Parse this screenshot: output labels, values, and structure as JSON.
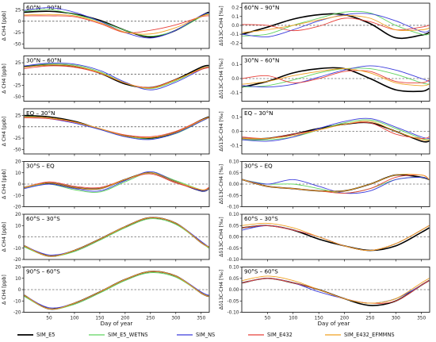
{
  "figure": {
    "xlabel": "Day of year",
    "x_ticks": [
      50,
      100,
      150,
      200,
      250,
      300,
      350
    ],
    "xlim": [
      0,
      366
    ],
    "series": [
      {
        "name": "SIM_E5",
        "color": "#000000"
      },
      {
        "name": "SIM_E5_WETNS",
        "color": "#5fd35f"
      },
      {
        "name": "SIM_NS",
        "color": "#3c3cdc"
      },
      {
        "name": "SIM_E432",
        "color": "#e8413a"
      },
      {
        "name": "SIM_E432_EFMMNS",
        "color": "#f0a020"
      }
    ]
  },
  "chart_data": [
    {
      "type": "line",
      "title": "60°N – 90°N",
      "ylabel": "Δ CH4 [ppb]",
      "ylim": [
        -60,
        40
      ],
      "yticks": [
        -50,
        -25,
        0,
        25
      ],
      "x": [
        1,
        50,
        100,
        150,
        200,
        250,
        300,
        350,
        365
      ],
      "series": [
        {
          "name": "SIM_E5",
          "values": [
            20,
            22,
            16,
            2,
            -20,
            -35,
            -20,
            12,
            20
          ]
        },
        {
          "name": "SIM_E5_WETNS",
          "values": [
            22,
            26,
            15,
            0,
            -20,
            -33,
            -20,
            10,
            18
          ]
        },
        {
          "name": "SIM_NS",
          "values": [
            24,
            30,
            20,
            0,
            -25,
            -37,
            -20,
            13,
            18
          ]
        },
        {
          "name": "SIM_E432",
          "values": [
            12,
            12,
            10,
            -5,
            -25,
            -20,
            -8,
            10,
            12
          ]
        },
        {
          "name": "SIM_E432_EFMMNS",
          "values": [
            14,
            15,
            12,
            -3,
            -24,
            -28,
            -14,
            11,
            15
          ]
        }
      ]
    },
    {
      "type": "line",
      "title": "60°N – 90°N",
      "ylabel": "Δδ13C-CH4 [‰]",
      "ylim": [
        -0.26,
        0.25
      ],
      "yticks": [
        -0.2,
        -0.1,
        0.0,
        0.1,
        0.2
      ],
      "x": [
        1,
        50,
        100,
        150,
        200,
        250,
        300,
        350,
        365
      ],
      "series": [
        {
          "name": "SIM_E5",
          "values": [
            -0.1,
            -0.02,
            0.07,
            0.12,
            0.12,
            0.02,
            -0.14,
            -0.11,
            -0.08
          ]
        },
        {
          "name": "SIM_E5_WETNS",
          "values": [
            -0.12,
            -0.1,
            0.0,
            0.08,
            0.15,
            0.14,
            0.0,
            -0.1,
            -0.1
          ]
        },
        {
          "name": "SIM_NS",
          "values": [
            -0.1,
            -0.13,
            -0.05,
            0.05,
            0.12,
            0.13,
            0.05,
            -0.07,
            -0.06
          ]
        },
        {
          "name": "SIM_E432",
          "values": [
            0.01,
            0.0,
            -0.06,
            -0.01,
            0.08,
            0.04,
            -0.05,
            -0.02,
            0.0
          ]
        },
        {
          "name": "SIM_E432_EFMMNS",
          "values": [
            -0.08,
            -0.05,
            0.0,
            0.06,
            0.11,
            0.08,
            -0.05,
            -0.05,
            -0.03
          ]
        }
      ]
    },
    {
      "type": "line",
      "title": "30°N – 60°N",
      "ylabel": "Δ CH4 [ppb]",
      "ylim": [
        -60,
        40
      ],
      "yticks": [
        -50,
        -25,
        0,
        25
      ],
      "x": [
        1,
        50,
        100,
        150,
        200,
        250,
        300,
        350,
        365
      ],
      "series": [
        {
          "name": "SIM_E5",
          "values": [
            17,
            20,
            17,
            2,
            -22,
            -30,
            -12,
            15,
            19
          ]
        },
        {
          "name": "SIM_E5_WETNS",
          "values": [
            18,
            22,
            20,
            5,
            -20,
            -32,
            -15,
            12,
            16
          ]
        },
        {
          "name": "SIM_NS",
          "values": [
            18,
            24,
            22,
            8,
            -18,
            -35,
            -18,
            10,
            16
          ]
        },
        {
          "name": "SIM_E432",
          "values": [
            12,
            18,
            15,
            2,
            -20,
            -30,
            -12,
            10,
            14
          ]
        },
        {
          "name": "SIM_E432_EFMMNS",
          "values": [
            15,
            20,
            17,
            3,
            -20,
            -31,
            -13,
            12,
            16
          ]
        }
      ]
    },
    {
      "type": "line",
      "title": "30°N – 60°N",
      "ylabel": "Δδ13C-CH4 [‰]",
      "ylim": [
        -0.16,
        0.16
      ],
      "yticks": [
        -0.1,
        0.0,
        0.1
      ],
      "x": [
        1,
        50,
        100,
        150,
        200,
        250,
        300,
        350,
        365
      ],
      "series": [
        {
          "name": "SIM_E5",
          "values": [
            -0.06,
            -0.02,
            0.04,
            0.07,
            0.07,
            0.0,
            -0.08,
            -0.09,
            -0.07
          ]
        },
        {
          "name": "SIM_E5_WETNS",
          "values": [
            -0.06,
            -0.05,
            -0.01,
            0.04,
            0.07,
            0.07,
            0.03,
            -0.03,
            -0.04
          ]
        },
        {
          "name": "SIM_NS",
          "values": [
            -0.05,
            -0.06,
            -0.04,
            0.01,
            0.06,
            0.09,
            0.06,
            0.0,
            -0.02
          ]
        },
        {
          "name": "SIM_E432",
          "values": [
            0.0,
            0.02,
            -0.03,
            0.0,
            0.05,
            0.05,
            -0.02,
            -0.03,
            -0.01
          ]
        },
        {
          "name": "SIM_E432_EFMMNS",
          "values": [
            -0.04,
            -0.02,
            0.02,
            0.05,
            0.07,
            0.04,
            -0.03,
            -0.05,
            -0.04
          ]
        }
      ]
    },
    {
      "type": "line",
      "title": "EQ – 30°N",
      "ylabel": "Δ CH4 [ppb]",
      "ylim": [
        -60,
        40
      ],
      "yticks": [
        -50,
        -25,
        0,
        25
      ],
      "x": [
        1,
        50,
        100,
        150,
        200,
        250,
        300,
        350,
        365
      ],
      "series": [
        {
          "name": "SIM_E5",
          "values": [
            25,
            22,
            12,
            -5,
            -20,
            -25,
            -12,
            15,
            22
          ]
        },
        {
          "name": "SIM_E5_WETNS",
          "values": [
            23,
            20,
            10,
            -5,
            -20,
            -27,
            -15,
            12,
            20
          ]
        },
        {
          "name": "SIM_NS",
          "values": [
            22,
            18,
            8,
            -6,
            -22,
            -28,
            -14,
            12,
            20
          ]
        },
        {
          "name": "SIM_E432",
          "values": [
            20,
            18,
            10,
            -4,
            -18,
            -22,
            -10,
            15,
            20
          ]
        },
        {
          "name": "SIM_E432_EFMMNS",
          "values": [
            22,
            20,
            11,
            -4,
            -20,
            -24,
            -12,
            14,
            21
          ]
        }
      ]
    },
    {
      "type": "line",
      "title": "EQ – 30°N",
      "ylabel": "Δδ13C-CH4 [‰]",
      "ylim": [
        -0.16,
        0.16
      ],
      "yticks": [
        -0.1,
        0.0,
        0.1
      ],
      "x": [
        1,
        50,
        100,
        150,
        200,
        250,
        300,
        350,
        365
      ],
      "series": [
        {
          "name": "SIM_E5",
          "values": [
            -0.05,
            -0.05,
            -0.02,
            0.02,
            0.05,
            0.06,
            0.0,
            -0.07,
            -0.07
          ]
        },
        {
          "name": "SIM_E5_WETNS",
          "values": [
            -0.06,
            -0.06,
            -0.04,
            0.01,
            0.06,
            0.08,
            0.02,
            -0.05,
            -0.06
          ]
        },
        {
          "name": "SIM_NS",
          "values": [
            -0.06,
            -0.07,
            -0.04,
            0.02,
            0.07,
            0.09,
            0.03,
            -0.04,
            -0.05
          ]
        },
        {
          "name": "SIM_E432",
          "values": [
            -0.04,
            -0.05,
            -0.02,
            0.01,
            0.05,
            0.06,
            -0.02,
            -0.05,
            -0.04
          ]
        },
        {
          "name": "SIM_E432_EFMMNS",
          "values": [
            -0.05,
            -0.05,
            -0.03,
            0.01,
            0.05,
            0.07,
            0.0,
            -0.06,
            -0.06
          ]
        }
      ]
    },
    {
      "type": "line",
      "title": "30°S – EQ",
      "ylabel": "Δ CH4 [ppb]",
      "ylim": [
        -20,
        20
      ],
      "yticks": [
        -20,
        -10,
        0,
        10,
        20
      ],
      "x": [
        1,
        50,
        100,
        150,
        200,
        250,
        300,
        350,
        365
      ],
      "series": [
        {
          "name": "SIM_E5",
          "values": [
            -3,
            1,
            -3,
            -4,
            4,
            10,
            2,
            -6,
            -4
          ]
        },
        {
          "name": "SIM_E5_WETNS",
          "values": [
            -3,
            0,
            -5,
            -7,
            2,
            10,
            3,
            -5,
            -4
          ]
        },
        {
          "name": "SIM_NS",
          "values": [
            -4,
            0,
            -4,
            -6,
            3,
            11,
            2,
            -6,
            -4
          ]
        },
        {
          "name": "SIM_E432",
          "values": [
            -3,
            2,
            -2,
            -3,
            4,
            9,
            1,
            -5,
            -3
          ]
        },
        {
          "name": "SIM_E432_EFMMNS",
          "values": [
            -3,
            1,
            -3,
            -4,
            4,
            10,
            2,
            -5,
            -4
          ]
        }
      ]
    },
    {
      "type": "line",
      "title": "30°S – EQ",
      "ylabel": "Δδ13C-CH4 [‰]",
      "ylim": [
        -0.1,
        0.1
      ],
      "yticks": [
        -0.1,
        -0.05,
        0.0,
        0.05,
        0.1
      ],
      "x": [
        1,
        50,
        100,
        150,
        200,
        250,
        300,
        350,
        365
      ],
      "series": [
        {
          "name": "SIM_E5",
          "values": [
            0.02,
            -0.01,
            -0.02,
            -0.03,
            -0.03,
            0.0,
            0.04,
            0.03,
            0.02
          ]
        },
        {
          "name": "SIM_E5_WETNS",
          "values": [
            0.02,
            0.0,
            0.0,
            -0.02,
            -0.04,
            -0.02,
            0.02,
            0.03,
            0.02
          ]
        },
        {
          "name": "SIM_NS",
          "values": [
            0.02,
            0.0,
            0.02,
            -0.01,
            -0.04,
            -0.03,
            0.02,
            0.03,
            0.02
          ]
        },
        {
          "name": "SIM_E432",
          "values": [
            0.02,
            -0.01,
            -0.02,
            -0.03,
            -0.04,
            -0.02,
            0.03,
            0.04,
            0.02
          ]
        },
        {
          "name": "SIM_E432_EFMMNS",
          "values": [
            0.02,
            -0.01,
            -0.02,
            -0.03,
            -0.03,
            0.0,
            0.04,
            0.04,
            0.02
          ]
        }
      ]
    },
    {
      "type": "line",
      "title": "60°S – 30°S",
      "ylabel": "Δ CH4 [ppb]",
      "ylim": [
        -20,
        20
      ],
      "yticks": [
        -20,
        -10,
        0,
        10,
        20
      ],
      "x": [
        1,
        50,
        100,
        150,
        200,
        250,
        300,
        350,
        365
      ],
      "series": [
        {
          "name": "SIM_E5",
          "values": [
            -8,
            -17,
            -12,
            -2,
            9,
            17,
            12,
            -5,
            -9
          ]
        },
        {
          "name": "SIM_E5_WETNS",
          "values": [
            -9,
            -17,
            -13,
            -3,
            8,
            16,
            11,
            -5,
            -10
          ]
        },
        {
          "name": "SIM_NS",
          "values": [
            -8,
            -16,
            -12,
            -2,
            9,
            17,
            12,
            -4,
            -9
          ]
        },
        {
          "name": "SIM_E432",
          "values": [
            -8,
            -17,
            -12,
            -2,
            9,
            17,
            12,
            -5,
            -9
          ]
        },
        {
          "name": "SIM_E432_EFMMNS",
          "values": [
            -8,
            -17,
            -12,
            -2,
            9,
            17,
            12,
            -5,
            -9
          ]
        }
      ]
    },
    {
      "type": "line",
      "title": "60°S – 30°S",
      "ylabel": "Δδ13C-CH4 [‰]",
      "ylim": [
        -0.1,
        0.1
      ],
      "yticks": [
        -0.1,
        -0.05,
        0.0,
        0.05,
        0.1
      ],
      "x": [
        1,
        50,
        100,
        150,
        200,
        250,
        300,
        350,
        365
      ],
      "series": [
        {
          "name": "SIM_E5",
          "values": [
            0.04,
            0.05,
            0.03,
            -0.01,
            -0.04,
            -0.06,
            -0.04,
            0.02,
            0.04
          ]
        },
        {
          "name": "SIM_E5_WETNS",
          "values": [
            0.04,
            0.05,
            0.03,
            0.0,
            -0.04,
            -0.06,
            -0.03,
            0.03,
            0.05
          ]
        },
        {
          "name": "SIM_NS",
          "values": [
            0.03,
            0.05,
            0.03,
            0.0,
            -0.04,
            -0.06,
            -0.03,
            0.03,
            0.05
          ]
        },
        {
          "name": "SIM_E432",
          "values": [
            0.04,
            0.05,
            0.03,
            0.0,
            -0.04,
            -0.06,
            -0.03,
            0.03,
            0.05
          ]
        },
        {
          "name": "SIM_E432_EFMMNS",
          "values": [
            0.05,
            0.06,
            0.04,
            0.0,
            -0.04,
            -0.06,
            -0.03,
            0.03,
            0.05
          ]
        }
      ]
    },
    {
      "type": "line",
      "title": "90°S – 60°S",
      "ylabel": "Δ CH4 [ppb]",
      "ylim": [
        -20,
        20
      ],
      "yticks": [
        -20,
        -10,
        0,
        10,
        20
      ],
      "x": [
        1,
        50,
        100,
        150,
        200,
        250,
        300,
        350,
        365
      ],
      "series": [
        {
          "name": "SIM_E5",
          "values": [
            -5,
            -17,
            -12,
            -2,
            9,
            16,
            12,
            -3,
            -6
          ]
        },
        {
          "name": "SIM_E5_WETNS",
          "values": [
            -6,
            -17,
            -13,
            -3,
            8,
            15,
            11,
            -3,
            -6
          ]
        },
        {
          "name": "SIM_NS",
          "values": [
            -5,
            -16,
            -12,
            -2,
            9,
            16,
            12,
            -2,
            -5
          ]
        },
        {
          "name": "SIM_E432",
          "values": [
            -5,
            -17,
            -12,
            -2,
            9,
            16,
            12,
            -3,
            -6
          ]
        },
        {
          "name": "SIM_E432_EFMMNS",
          "values": [
            -5,
            -17,
            -12,
            -2,
            9,
            16,
            12,
            -3,
            -6
          ]
        }
      ]
    },
    {
      "type": "line",
      "title": "90°S – 60°S",
      "ylabel": "Δδ13C-CH4 [‰]",
      "ylim": [
        -0.1,
        0.1
      ],
      "yticks": [
        -0.1,
        -0.05,
        0.0,
        0.05,
        0.1
      ],
      "x": [
        1,
        50,
        100,
        150,
        200,
        250,
        300,
        350,
        365
      ],
      "series": [
        {
          "name": "SIM_E5",
          "values": [
            0.03,
            0.05,
            0.03,
            0.0,
            -0.04,
            -0.07,
            -0.05,
            0.02,
            0.04
          ]
        },
        {
          "name": "SIM_E5_WETNS",
          "values": [
            0.03,
            0.05,
            0.03,
            0.0,
            -0.04,
            -0.06,
            -0.04,
            0.02,
            0.04
          ]
        },
        {
          "name": "SIM_NS",
          "values": [
            0.03,
            0.05,
            0.03,
            -0.01,
            -0.04,
            -0.06,
            -0.04,
            0.02,
            0.04
          ]
        },
        {
          "name": "SIM_E432",
          "values": [
            0.03,
            0.05,
            0.03,
            0.0,
            -0.04,
            -0.06,
            -0.05,
            0.02,
            0.04
          ]
        },
        {
          "name": "SIM_E432_EFMMNS",
          "values": [
            0.04,
            0.06,
            0.04,
            0.0,
            -0.04,
            -0.06,
            -0.04,
            0.03,
            0.05
          ]
        }
      ]
    }
  ]
}
